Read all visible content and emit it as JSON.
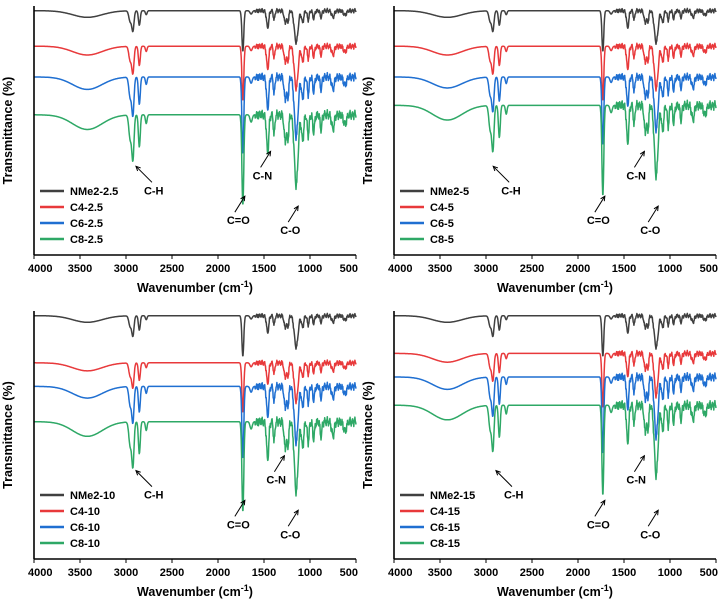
{
  "chart_data": [
    {
      "type": "line",
      "xlabel": "Wavenumber (cm",
      "xlabel_sup": "-1",
      "xlabel_end": ")",
      "ylabel": "Transmittance (%)",
      "xlim": [
        4000,
        500
      ],
      "x_ticks": [
        "4000",
        "3500",
        "3000",
        "2500",
        "2000",
        "1500",
        "1000",
        "500"
      ],
      "legend_position": "bottom-left",
      "series": [
        {
          "name": "NMe2-2.5",
          "color": "#404040",
          "offset": 0.0,
          "depth": 0.45
        },
        {
          "name": "C4-2.5",
          "color": "#e8393b",
          "offset": 0.15,
          "depth": 0.6
        },
        {
          "name": "C6-2.5",
          "color": "#1f6fd1",
          "offset": 0.28,
          "depth": 0.85
        },
        {
          "name": "C8-2.5",
          "color": "#2ea866",
          "offset": 0.44,
          "depth": 1.0
        }
      ],
      "annotations": [
        {
          "text": "C-H",
          "at_x": 2870
        },
        {
          "text": "C=O",
          "at_x": 1730
        },
        {
          "text": "C-N",
          "at_x": 1450
        },
        {
          "text": "C-O",
          "at_x": 1150
        }
      ]
    },
    {
      "type": "line",
      "xlabel": "Wavenumber (cm",
      "xlabel_sup": "-1",
      "xlabel_end": ")",
      "ylabel": "Transmittance (%)",
      "xlim": [
        4000,
        500
      ],
      "x_ticks": [
        "4000",
        "3500",
        "3000",
        "2500",
        "2000",
        "1500",
        "1000",
        "500"
      ],
      "legend_position": "bottom-left",
      "series": [
        {
          "name": "NMe2-5",
          "color": "#404040",
          "offset": 0.0,
          "depth": 0.45
        },
        {
          "name": "C4-5",
          "color": "#e8393b",
          "offset": 0.15,
          "depth": 0.6
        },
        {
          "name": "C6-5",
          "color": "#1f6fd1",
          "offset": 0.28,
          "depth": 0.75
        },
        {
          "name": "C8-5",
          "color": "#2ea866",
          "offset": 0.4,
          "depth": 1.0
        }
      ],
      "annotations": [
        {
          "text": "C-H",
          "at_x": 2900
        },
        {
          "text": "C=O",
          "at_x": 1730
        },
        {
          "text": "C-N",
          "at_x": 1300
        },
        {
          "text": "C-O",
          "at_x": 1150
        }
      ]
    },
    {
      "type": "line",
      "xlabel": "Wavenumber (cm",
      "xlabel_sup": "-1",
      "xlabel_end": ")",
      "ylabel": "Transmittance (%)",
      "xlim": [
        4000,
        500
      ],
      "x_ticks": [
        "4000",
        "3500",
        "3000",
        "2500",
        "2000",
        "1500",
        "1000",
        "500"
      ],
      "legend_position": "bottom-left",
      "series": [
        {
          "name": "NMe2-10",
          "color": "#404040",
          "offset": 0.0,
          "depth": 0.45
        },
        {
          "name": "C4-10",
          "color": "#e8393b",
          "offset": 0.2,
          "depth": 0.55
        },
        {
          "name": "C6-10",
          "color": "#1f6fd1",
          "offset": 0.3,
          "depth": 0.8
        },
        {
          "name": "C8-10",
          "color": "#2ea866",
          "offset": 0.45,
          "depth": 1.0
        }
      ],
      "annotations": [
        {
          "text": "C-H",
          "at_x": 2870
        },
        {
          "text": "C=O",
          "at_x": 1730
        },
        {
          "text": "C-N",
          "at_x": 1300
        },
        {
          "text": "C-O",
          "at_x": 1150
        }
      ]
    },
    {
      "type": "line",
      "xlabel": "Wavenumber (cm",
      "xlabel_sup": "-1",
      "xlabel_end": ")",
      "ylabel": "Transmittance (%)",
      "xlim": [
        4000,
        500
      ],
      "x_ticks": [
        "4000",
        "3500",
        "3000",
        "2500",
        "2000",
        "1500",
        "1000",
        "500"
      ],
      "legend_position": "bottom-left",
      "series": [
        {
          "name": "NMe2-15",
          "color": "#404040",
          "offset": 0.0,
          "depth": 0.45
        },
        {
          "name": "C4-15",
          "color": "#e8393b",
          "offset": 0.16,
          "depth": 0.6
        },
        {
          "name": "C6-15",
          "color": "#1f6fd1",
          "offset": 0.26,
          "depth": 0.85
        },
        {
          "name": "C8-15",
          "color": "#2ea866",
          "offset": 0.38,
          "depth": 1.0
        }
      ],
      "annotations": [
        {
          "text": "C-H",
          "at_x": 2870
        },
        {
          "text": "C=O",
          "at_x": 1730
        },
        {
          "text": "C-N",
          "at_x": 1300
        },
        {
          "text": "C-O",
          "at_x": 1150
        }
      ]
    }
  ]
}
